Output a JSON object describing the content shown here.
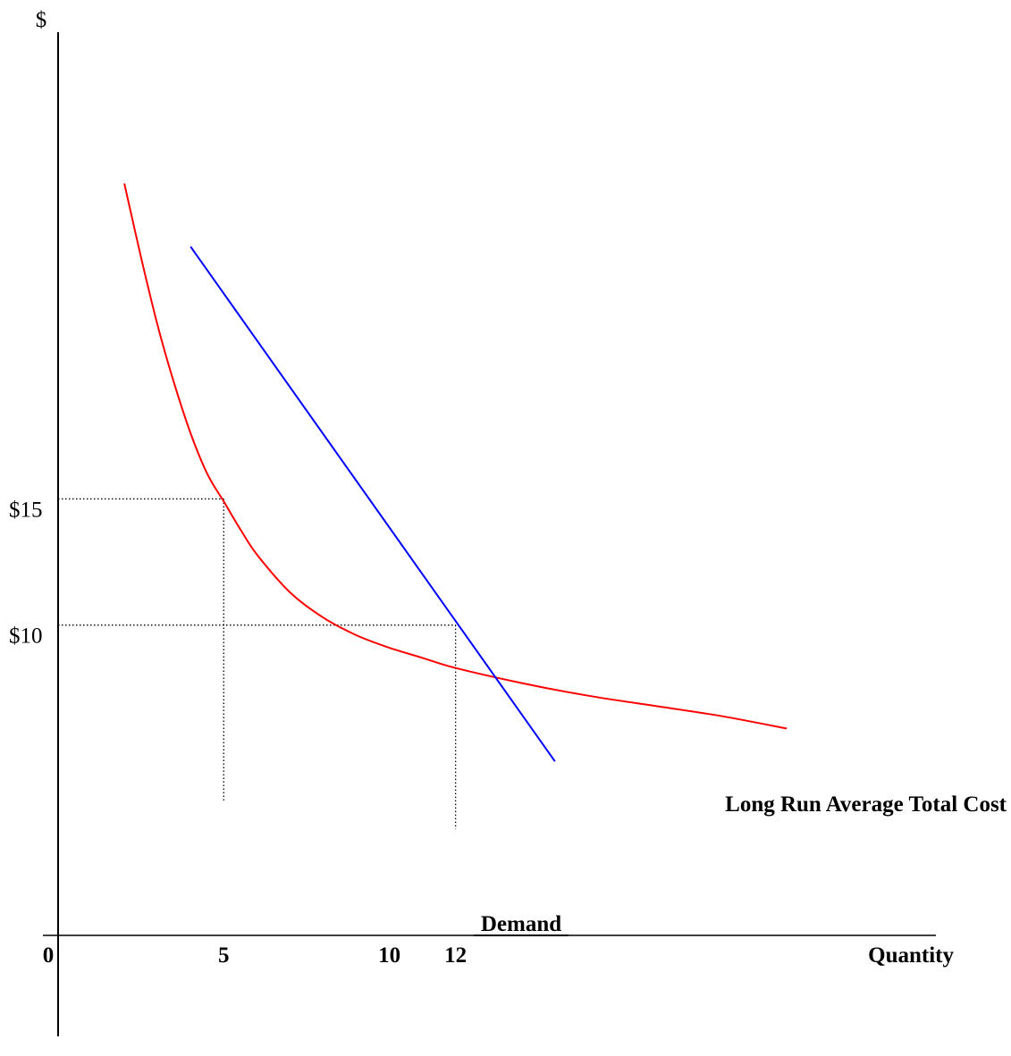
{
  "chart_data": {
    "type": "line",
    "title": "",
    "ylabel": "$",
    "xlabel": "Quantity",
    "x_ticks": [
      {
        "value": 0,
        "label": "0"
      },
      {
        "value": 5,
        "label": "5"
      },
      {
        "value": 10,
        "label": "10"
      },
      {
        "value": 12,
        "label": "12"
      }
    ],
    "y_ticks": [
      {
        "value": 10,
        "label": "$10"
      },
      {
        "value": 15,
        "label": "$15"
      }
    ],
    "xlim": [
      0,
      26.5
    ],
    "ylim": [
      -6.3,
      33.5
    ],
    "grid": false,
    "series": [
      {
        "name": "Long Run Average Total Cost",
        "color": "#ff0000",
        "x": [
          2,
          2.5,
          3,
          3.5,
          4,
          4.5,
          5,
          5.5,
          6,
          7,
          8,
          9,
          10,
          11,
          12,
          14,
          16,
          18,
          20,
          22
        ],
        "y": [
          27.5,
          24.6,
          21.9,
          19.6,
          17.6,
          16.0,
          14.9,
          13.8,
          12.8,
          11.3,
          10.3,
          9.6,
          9.1,
          8.7,
          8.3,
          7.7,
          7.2,
          6.8,
          6.4,
          5.9
        ]
      },
      {
        "name": "Demand",
        "color": "#0000ff",
        "x": [
          4,
          15
        ],
        "y": [
          25,
          4.6
        ]
      }
    ],
    "reference_lines": {
      "color": "#000000",
      "style": "dotted",
      "points": [
        {
          "x": 5,
          "y": 15
        },
        {
          "x": 12,
          "y": 10
        }
      ]
    },
    "annotations": [
      {
        "text": "Long Run Average Total Cost",
        "series": 0
      },
      {
        "text": "Demand",
        "series": 1
      }
    ]
  }
}
